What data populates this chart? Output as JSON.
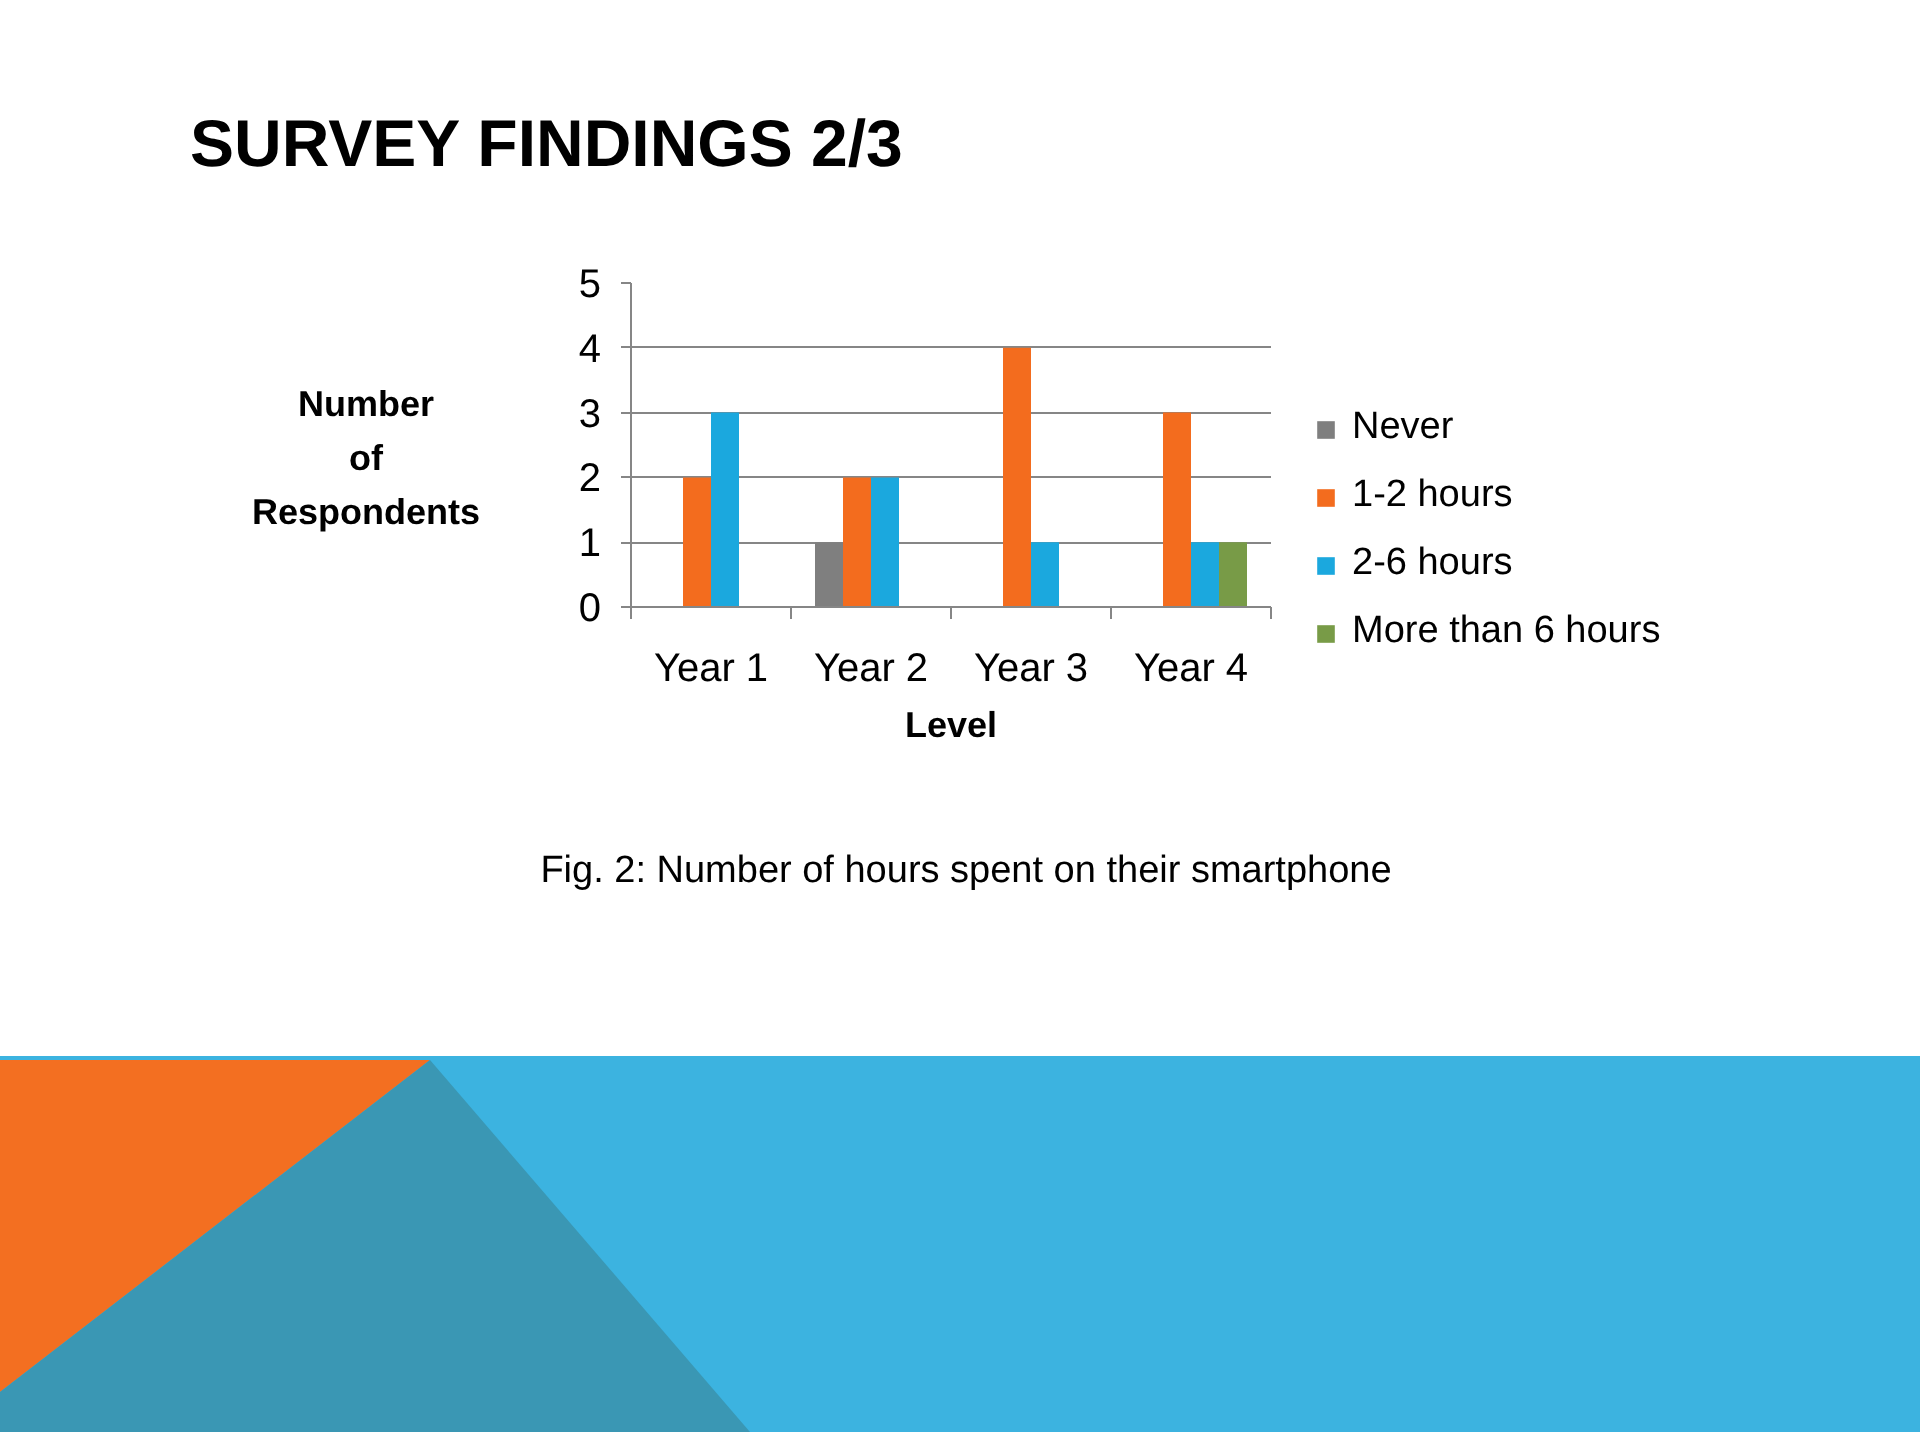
{
  "chart_data": {
    "type": "bar",
    "title": "SURVEY FINDINGS 2/3",
    "xlabel": "Level",
    "ylabel": "Number of Respondents",
    "annotations": [
      "Fig. 2: Number of hours spent on their smartphone"
    ],
    "categories": [
      "Year 1",
      "Year 2",
      "Year 3",
      "Year 4"
    ],
    "series": [
      {
        "name": "Never",
        "color": "#7f7f7f",
        "values": [
          null,
          1,
          null,
          null
        ]
      },
      {
        "name": "1-2 hours",
        "color": "#f36c1e",
        "values": [
          2,
          2,
          4,
          3
        ]
      },
      {
        "name": "2-6 hours",
        "color": "#1ba8de",
        "values": [
          3,
          2,
          1,
          1
        ]
      },
      {
        "name": "More than 6 hours",
        "color": "#789b47",
        "values": [
          null,
          null,
          null,
          1
        ]
      }
    ],
    "ylim": [
      0,
      5
    ],
    "yticks": [
      0,
      1,
      2,
      3,
      4,
      5
    ],
    "grid": "y",
    "legend": "right"
  }
}
